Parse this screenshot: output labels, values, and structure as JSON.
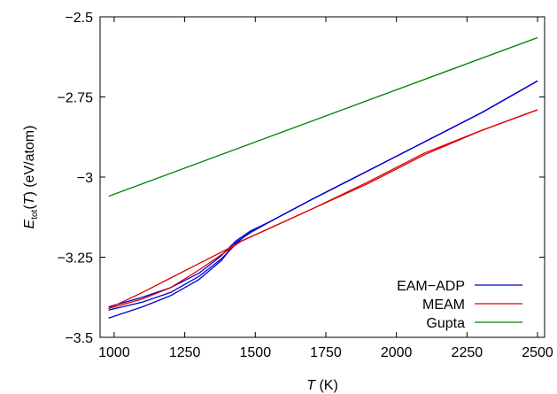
{
  "chart_data": {
    "type": "line",
    "xlabel": {
      "italic": "T",
      "rest": " (K)"
    },
    "ylabel": {
      "main": "E",
      "sub": "tot",
      "mid": "(",
      "italic": "T",
      "rest": ") (eV/atom)"
    },
    "xlim": [
      950,
      2525
    ],
    "ylim": [
      -3.5,
      -2.5
    ],
    "xticks": [
      1000,
      1250,
      1500,
      1750,
      2000,
      2250,
      2500
    ],
    "yticks": [
      -3.5,
      -3.25,
      -3,
      -2.75,
      -2.5
    ],
    "xtick_labels": [
      "1000",
      "1250",
      "1500",
      "1750",
      "2000",
      "2250",
      "2500"
    ],
    "ytick_labels": [
      "−3.5",
      "−3.25",
      "−3",
      "−2.75",
      "−2.5"
    ],
    "grid": false,
    "legend_position": "bottom-right",
    "series": [
      {
        "name": "EAM−ADP",
        "color": "#0000cc",
        "segments": [
          {
            "x": [
              980,
              1100,
              1200,
              1300,
              1380,
              1430,
              1480,
              1550,
              1700,
              1900,
              2100,
              2300,
              2500
            ],
            "y": [
              -3.44,
              -3.405,
              -3.37,
              -3.32,
              -3.26,
              -3.205,
              -3.175,
              -3.14,
              -3.07,
              -2.98,
              -2.89,
              -2.8,
              -2.7
            ]
          },
          {
            "x": [
              980,
              1100,
              1200,
              1300,
              1380,
              1430,
              1480,
              1550,
              1700,
              1900,
              2100,
              2300,
              2500
            ],
            "y": [
              -3.405,
              -3.375,
              -3.345,
              -3.3,
              -3.245,
              -3.2,
              -3.17,
              -3.14,
              -3.07,
              -2.98,
              -2.89,
              -2.8,
              -2.7
            ]
          },
          {
            "x": [
              980,
              1100,
              1200,
              1300,
              1380,
              1430,
              1480,
              1550,
              1700,
              1900,
              2100,
              2300,
              2500
            ],
            "y": [
              -3.415,
              -3.39,
              -3.36,
              -3.31,
              -3.255,
              -3.21,
              -3.17,
              -3.14,
              -3.07,
              -2.98,
              -2.89,
              -2.8,
              -2.7
            ]
          }
        ]
      },
      {
        "name": "MEAM",
        "color": "#dd0000",
        "segments": [
          {
            "x": [
              980,
              1100,
              1200,
              1300,
              1400,
              1450,
              1500,
              1700,
              1900,
              2100,
              2300,
              2500
            ],
            "y": [
              -3.41,
              -3.36,
              -3.315,
              -3.27,
              -3.225,
              -3.2,
              -3.18,
              -3.1,
              -3.02,
              -2.93,
              -2.855,
              -2.79
            ]
          },
          {
            "x": [
              980,
              1100,
              1200,
              1300,
              1400,
              1450,
              1500,
              1700,
              1900,
              2100,
              2300,
              2500
            ],
            "y": [
              -3.41,
              -3.38,
              -3.345,
              -3.29,
              -3.23,
              -3.2,
              -3.18,
              -3.1,
              -3.015,
              -2.925,
              -2.855,
              -2.79
            ]
          }
        ]
      },
      {
        "name": "Gupta",
        "color": "#008000",
        "segments": [
          {
            "x": [
              980,
              2500
            ],
            "y": [
              -3.06,
              -2.565
            ]
          }
        ]
      }
    ]
  }
}
